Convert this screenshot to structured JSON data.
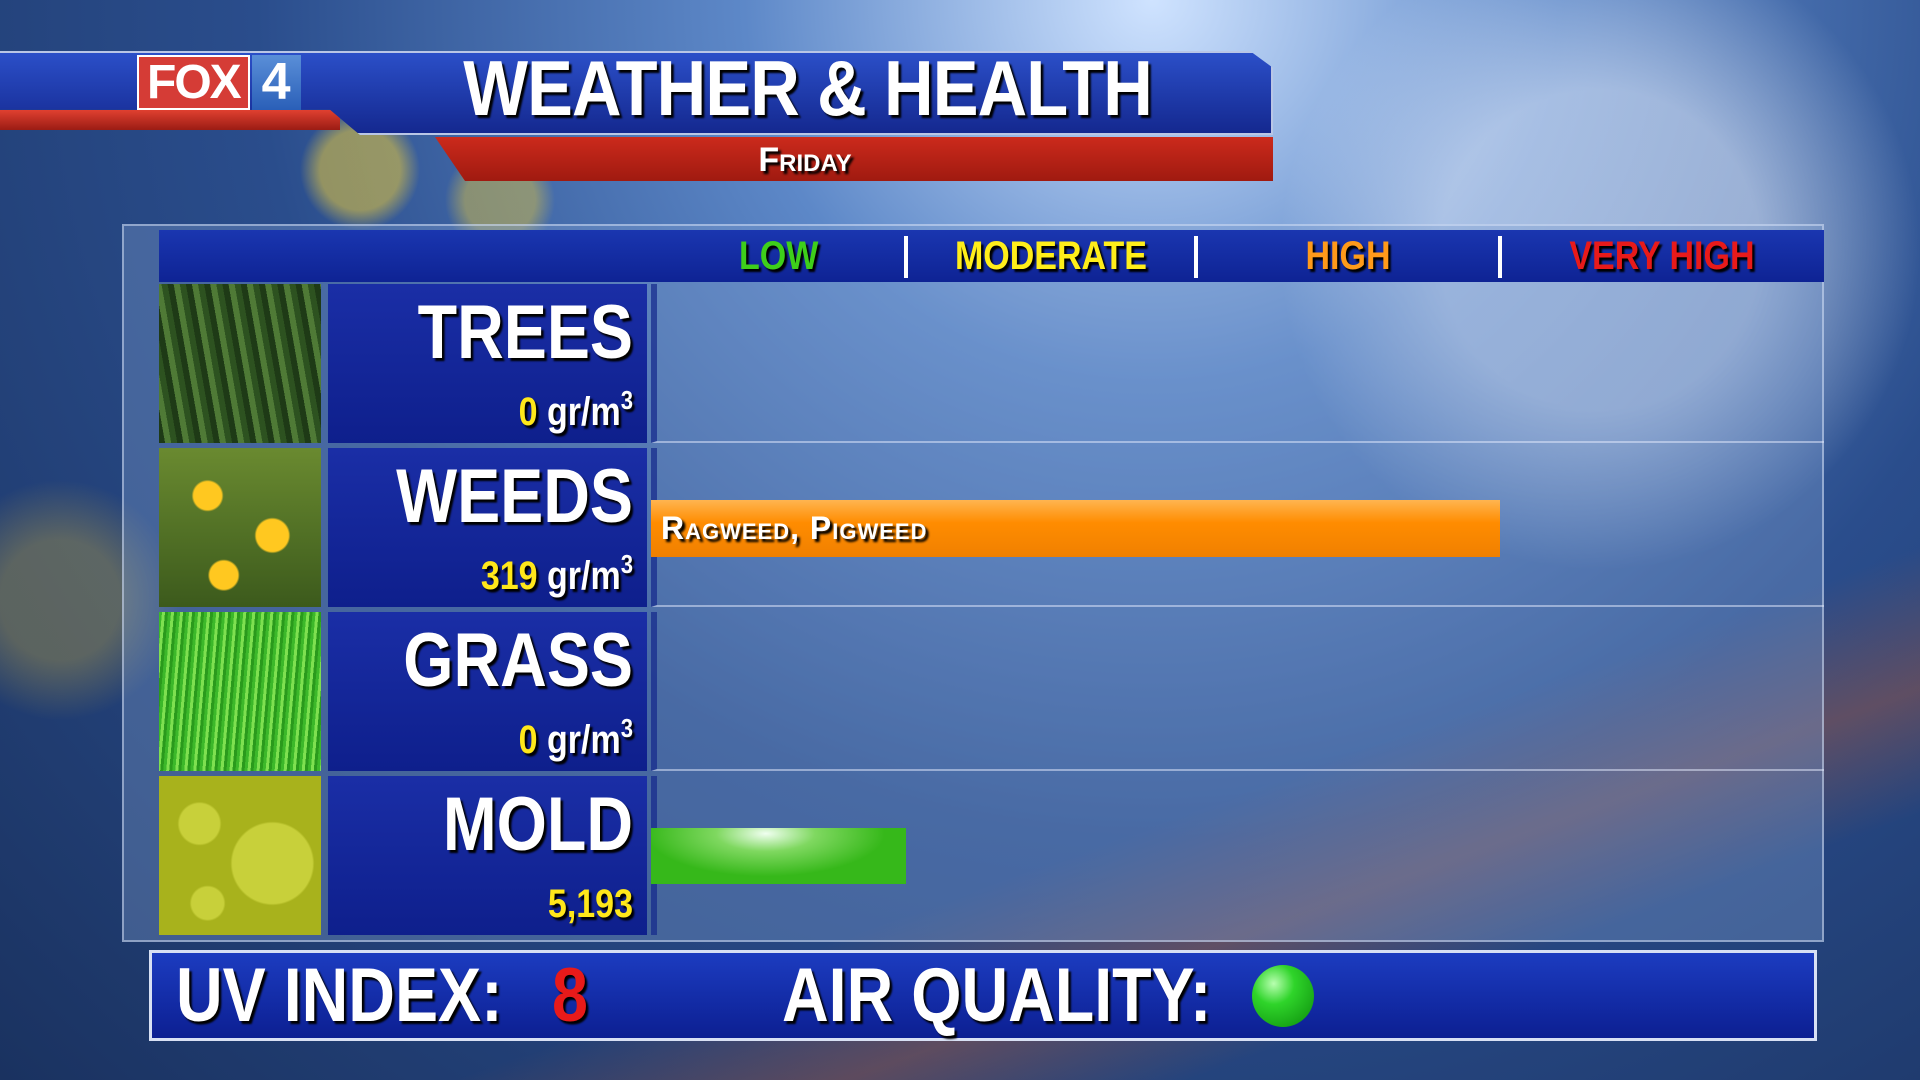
{
  "header": {
    "logo_text": "FOX 4",
    "title": "WEATHER & HEALTH",
    "day": "Friday"
  },
  "levels": [
    {
      "label": "LOW",
      "color": "#3ecf1a"
    },
    {
      "label": "MODERATE",
      "color": "#ffee1a"
    },
    {
      "label": "HIGH",
      "color": "#ff9a1a"
    },
    {
      "label": "VERY HIGH",
      "color": "#e81a1a"
    }
  ],
  "rows": [
    {
      "name": "TREES",
      "value": "0",
      "unit": "gr/m",
      "unit_sup": "3",
      "level": 0,
      "image": "pine-trees"
    },
    {
      "name": "WEEDS",
      "value": "319",
      "unit": "gr/m",
      "unit_sup": "3",
      "level": 3,
      "bar_label": "Ragweed, Pigweed",
      "bar_color": "#ff8c00",
      "image": "dandelions"
    },
    {
      "name": "GRASS",
      "value": "0",
      "unit": "gr/m",
      "unit_sup": "3",
      "level": 0,
      "image": "grass"
    },
    {
      "name": "MOLD",
      "value": "5,193",
      "level": 1,
      "bar_color": "#36b81a",
      "image": "mold-spores"
    }
  ],
  "footer": {
    "uv_label": "UV INDEX:",
    "uv_value": "8",
    "uv_color": "#e81a1a",
    "air_label": "AIR QUALITY:",
    "air_status_color": "#2fd42a"
  }
}
